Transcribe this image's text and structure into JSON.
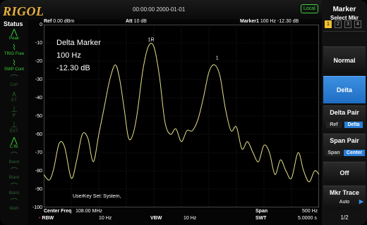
{
  "brand": "RIGOL",
  "datetime": "00:00:00 2000-01-01",
  "local_badge": "Local",
  "header": {
    "ref_label": "Ref",
    "ref_value": "0.00 dBm",
    "att_label": "Att",
    "att_value": "10 dB",
    "marker_label": "Marker1",
    "marker_freq": "100 Hz",
    "marker_level": "-12.30 dB"
  },
  "status": {
    "title": "Status",
    "items": [
      {
        "icon": "peak-icon",
        "label": "Peak",
        "state": "on"
      },
      {
        "icon": "trig-icon",
        "label": "TRIG Free",
        "state": "on"
      },
      {
        "icon": "swp-icon",
        "label": "SWP Cont",
        "state": "on"
      },
      {
        "icon": "corr-icon",
        "label": "Corr",
        "state": "off"
      },
      {
        "icon": "ext-icon",
        "label": "ET",
        "state": "off"
      },
      {
        "icon": "ifft-icon",
        "label": "IF",
        "state": "off"
      },
      {
        "icon": "ext2-icon",
        "label": "EXT",
        "state": "off"
      },
      {
        "icon": "cw-icon",
        "label": "C.W.",
        "state": "on"
      },
      {
        "icon": "blank-icon",
        "label": "Blank",
        "state": "off"
      },
      {
        "icon": "blank2-icon",
        "label": "Blank",
        "state": "off"
      },
      {
        "icon": "blank3-icon",
        "label": "Blank",
        "state": "off"
      },
      {
        "icon": "math-icon",
        "label": "Math",
        "state": "off"
      }
    ]
  },
  "y_ticks": [
    "0",
    "-10",
    "-20",
    "-30",
    "-40",
    "-50",
    "-60",
    "-70",
    "-80",
    "-90",
    "-100"
  ],
  "overlay": {
    "title": "Delta Marker",
    "freq": "100 Hz",
    "level": "-12.30 dB"
  },
  "markers": {
    "ref_marker": "1R",
    "delta_marker": "1"
  },
  "userkey": "UserKey Set:  System,",
  "footer": {
    "center_label": "Center Freq",
    "center_value": "108.00 MHz",
    "span_label": "Span",
    "span_value": "500 Hz",
    "rbw_label": "RBW",
    "rbw_value": "10 Hz",
    "vbw_label": "VBW",
    "vbw_value": "10 Hz",
    "swt_label": "SWT",
    "swt_value": "5.0000 s"
  },
  "menu": {
    "title": "Marker",
    "select_label": "Select Mkr",
    "select_numbers": [
      "1",
      "2",
      "3",
      "4"
    ],
    "selected_index": 0,
    "normal_label": "Normal",
    "delta_label": "Delta",
    "delta_pair_label": "Delta Pair",
    "delta_pair_options": [
      "Ref",
      "Delta"
    ],
    "span_pair_label": "Span Pair",
    "span_pair_options": [
      "Span",
      "Center"
    ],
    "off_label": "Off",
    "mkr_trace_label": "Mkr Trace",
    "mkr_trace_value": "Auto",
    "page": "1/2"
  },
  "chart_data": {
    "type": "line",
    "title": "",
    "xlabel": "",
    "ylabel": "",
    "ylim": [
      -100,
      0
    ],
    "x_range_hz": [
      -250,
      250
    ],
    "series": [
      {
        "x": [
          -250,
          -240,
          -232,
          -222,
          -212,
          -200,
          -190,
          -180,
          -170,
          -160,
          -150,
          -140,
          -130,
          -120,
          -112,
          -104,
          -96,
          -88,
          -80,
          -70,
          -60,
          -50,
          -40,
          -30,
          -20,
          -10,
          0,
          10,
          20,
          30,
          40,
          50,
          60,
          70,
          80,
          90,
          100,
          110,
          120,
          130,
          140,
          150,
          160,
          170,
          180,
          190,
          200,
          212,
          222,
          232,
          242,
          250
        ],
        "y": [
          -82,
          -85,
          -79,
          -65,
          -67,
          -84,
          -74,
          -60,
          -62,
          -75,
          -60,
          -45,
          -30,
          -22,
          -30,
          -46,
          -62,
          -60,
          -48,
          -25,
          -12,
          -12,
          -28,
          -53,
          -60,
          -57,
          -64,
          -58,
          -58,
          -52,
          -40,
          -26,
          -22,
          -28,
          -46,
          -58,
          -56,
          -68,
          -64,
          -70,
          -75,
          -66,
          -70,
          -82,
          -74,
          -80,
          -84,
          -70,
          -80,
          -86,
          -80,
          -82
        ]
      }
    ]
  }
}
